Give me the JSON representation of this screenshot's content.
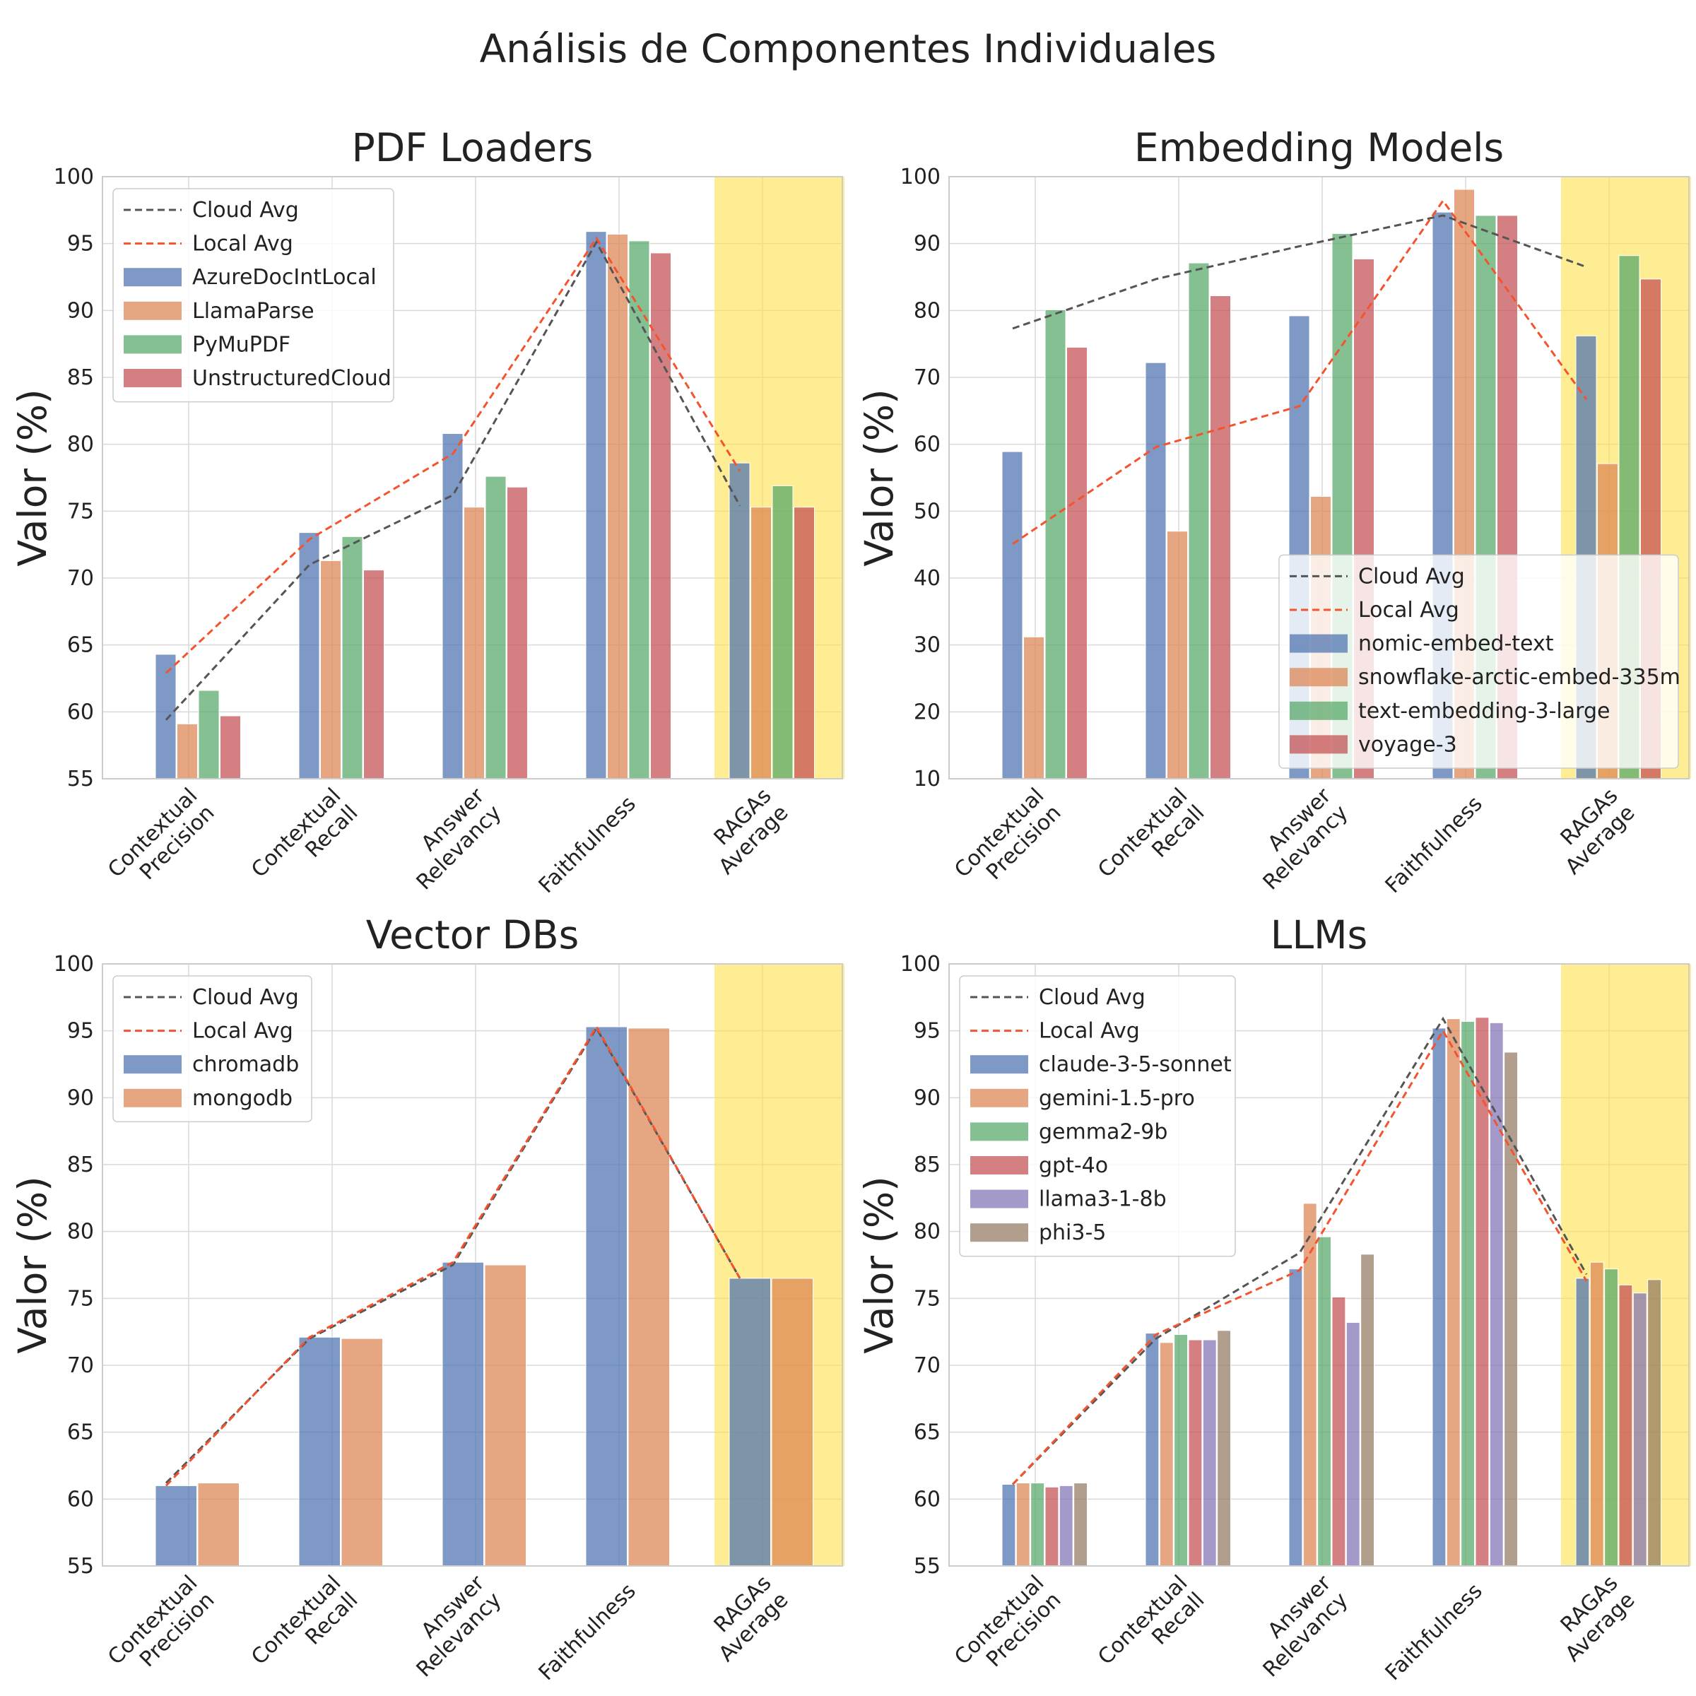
{
  "figure_title": "Análisis de Componentes Individuales",
  "colors": {
    "series": [
      "#4c72b0",
      "#dd8452",
      "#55a868",
      "#c44e52",
      "#8172b3",
      "#937860"
    ],
    "cloud_avg": "#555555",
    "local_avg": "#f4532e",
    "highlight": "#ffe14d",
    "grid": "#d9d9d9",
    "spine": "#cccccc"
  },
  "chart_data": [
    {
      "type": "bar",
      "title": "PDF Loaders",
      "ylabel": "Valor (%)",
      "ylim": [
        55,
        100
      ],
      "yticks": [
        55,
        60,
        65,
        70,
        75,
        80,
        85,
        90,
        95,
        100
      ],
      "categories": [
        [
          "Contextual",
          "Precision"
        ],
        [
          "Contextual",
          "Recall"
        ],
        [
          "Answer",
          "Relevancy"
        ],
        [
          "Faithfulness"
        ],
        [
          "RAGAs",
          "Average"
        ]
      ],
      "highlight_category": "RAGAs Average",
      "legend_position": "upper-left",
      "series": [
        {
          "name": "AzureDocIntLocal",
          "values": [
            64.3,
            73.4,
            80.8,
            95.9,
            78.6
          ]
        },
        {
          "name": "LlamaParse",
          "values": [
            59.1,
            71.3,
            75.3,
            95.7,
            75.3
          ]
        },
        {
          "name": "PyMuPDF",
          "values": [
            61.6,
            73.1,
            77.6,
            95.2,
            76.9
          ]
        },
        {
          "name": "UnstructuredCloud",
          "values": [
            59.7,
            70.6,
            76.8,
            94.3,
            75.3
          ]
        }
      ],
      "lines": [
        {
          "name": "Cloud Avg",
          "style": "dashed",
          "values": [
            59.4,
            71.0,
            76.2,
            95.1,
            75.4
          ]
        },
        {
          "name": "Local Avg",
          "style": "dashed",
          "values": [
            62.9,
            72.9,
            79.3,
            95.4,
            78.0
          ]
        }
      ]
    },
    {
      "type": "bar",
      "title": "Embedding Models",
      "ylabel": "Valor (%)",
      "ylim": [
        10,
        100
      ],
      "yticks": [
        10,
        20,
        30,
        40,
        50,
        60,
        70,
        80,
        90,
        100
      ],
      "categories": [
        [
          "Contextual",
          "Precision"
        ],
        [
          "Contextual",
          "Recall"
        ],
        [
          "Answer",
          "Relevancy"
        ],
        [
          "Faithfulness"
        ],
        [
          "RAGAs",
          "Average"
        ]
      ],
      "highlight_category": "RAGAs Average",
      "legend_position": "lower-right",
      "series": [
        {
          "name": "nomic-embed-text",
          "values": [
            58.9,
            72.2,
            79.2,
            94.7,
            76.2
          ]
        },
        {
          "name": "snowflake-arctic-embed-335m",
          "values": [
            31.2,
            47.0,
            52.2,
            98.1,
            57.1
          ]
        },
        {
          "name": "text-embedding-3-large",
          "values": [
            80.1,
            87.1,
            91.5,
            94.2,
            88.2
          ]
        },
        {
          "name": "voyage-3",
          "values": [
            74.5,
            82.2,
            87.7,
            94.2,
            84.7
          ]
        }
      ],
      "lines": [
        {
          "name": "Cloud Avg",
          "style": "dashed",
          "values": [
            77.3,
            84.7,
            89.6,
            94.2,
            86.5
          ]
        },
        {
          "name": "Local Avg",
          "style": "dashed",
          "values": [
            45.1,
            59.6,
            65.7,
            96.4,
            66.7
          ]
        }
      ]
    },
    {
      "type": "bar",
      "title": "Vector DBs",
      "ylabel": "Valor (%)",
      "ylim": [
        55,
        100
      ],
      "yticks": [
        55,
        60,
        65,
        70,
        75,
        80,
        85,
        90,
        95,
        100
      ],
      "categories": [
        [
          "Contextual",
          "Precision"
        ],
        [
          "Contextual",
          "Recall"
        ],
        [
          "Answer",
          "Relevancy"
        ],
        [
          "Faithfulness"
        ],
        [
          "RAGAs",
          "Average"
        ]
      ],
      "highlight_category": "RAGAs Average",
      "legend_position": "upper-left",
      "series": [
        {
          "name": "chromadb",
          "values": [
            61.0,
            72.1,
            77.7,
            95.3,
            76.5
          ]
        },
        {
          "name": "mongodb",
          "values": [
            61.2,
            72.0,
            77.5,
            95.2,
            76.5
          ]
        }
      ],
      "lines": [
        {
          "name": "Cloud Avg",
          "style": "dashed",
          "values": [
            61.2,
            72.0,
            77.5,
            95.2,
            76.5
          ]
        },
        {
          "name": "Local Avg",
          "style": "dashed",
          "values": [
            61.0,
            72.1,
            77.7,
            95.3,
            76.5
          ]
        }
      ]
    },
    {
      "type": "bar",
      "title": "LLMs",
      "ylabel": "Valor (%)",
      "ylim": [
        55,
        100
      ],
      "yticks": [
        55,
        60,
        65,
        70,
        75,
        80,
        85,
        90,
        95,
        100
      ],
      "categories": [
        [
          "Contextual",
          "Precision"
        ],
        [
          "Contextual",
          "Recall"
        ],
        [
          "Answer",
          "Relevancy"
        ],
        [
          "Faithfulness"
        ],
        [
          "RAGAs",
          "Average"
        ]
      ],
      "highlight_category": "RAGAs Average",
      "legend_position": "upper-left",
      "series": [
        {
          "name": "claude-3-5-sonnet",
          "values": [
            61.1,
            72.4,
            77.2,
            95.2,
            76.5
          ]
        },
        {
          "name": "gemini-1.5-pro",
          "values": [
            61.2,
            71.7,
            82.1,
            95.9,
            77.7
          ]
        },
        {
          "name": "gemma2-9b",
          "values": [
            61.2,
            72.3,
            79.6,
            95.7,
            77.2
          ]
        },
        {
          "name": "gpt-4o",
          "values": [
            60.9,
            71.9,
            75.1,
            96.0,
            76.0
          ]
        },
        {
          "name": "llama3-1-8b",
          "values": [
            61.0,
            71.9,
            73.2,
            95.6,
            75.4
          ]
        },
        {
          "name": "phi3-5",
          "values": [
            61.2,
            72.6,
            78.3,
            93.4,
            76.4
          ]
        }
      ],
      "lines": [
        {
          "name": "Cloud Avg",
          "style": "dashed",
          "values": [
            61.1,
            72.0,
            78.4,
            95.9,
            76.8
          ]
        },
        {
          "name": "Local Avg",
          "style": "dashed",
          "values": [
            61.1,
            72.3,
            77.1,
            95.0,
            76.3
          ]
        }
      ]
    }
  ]
}
